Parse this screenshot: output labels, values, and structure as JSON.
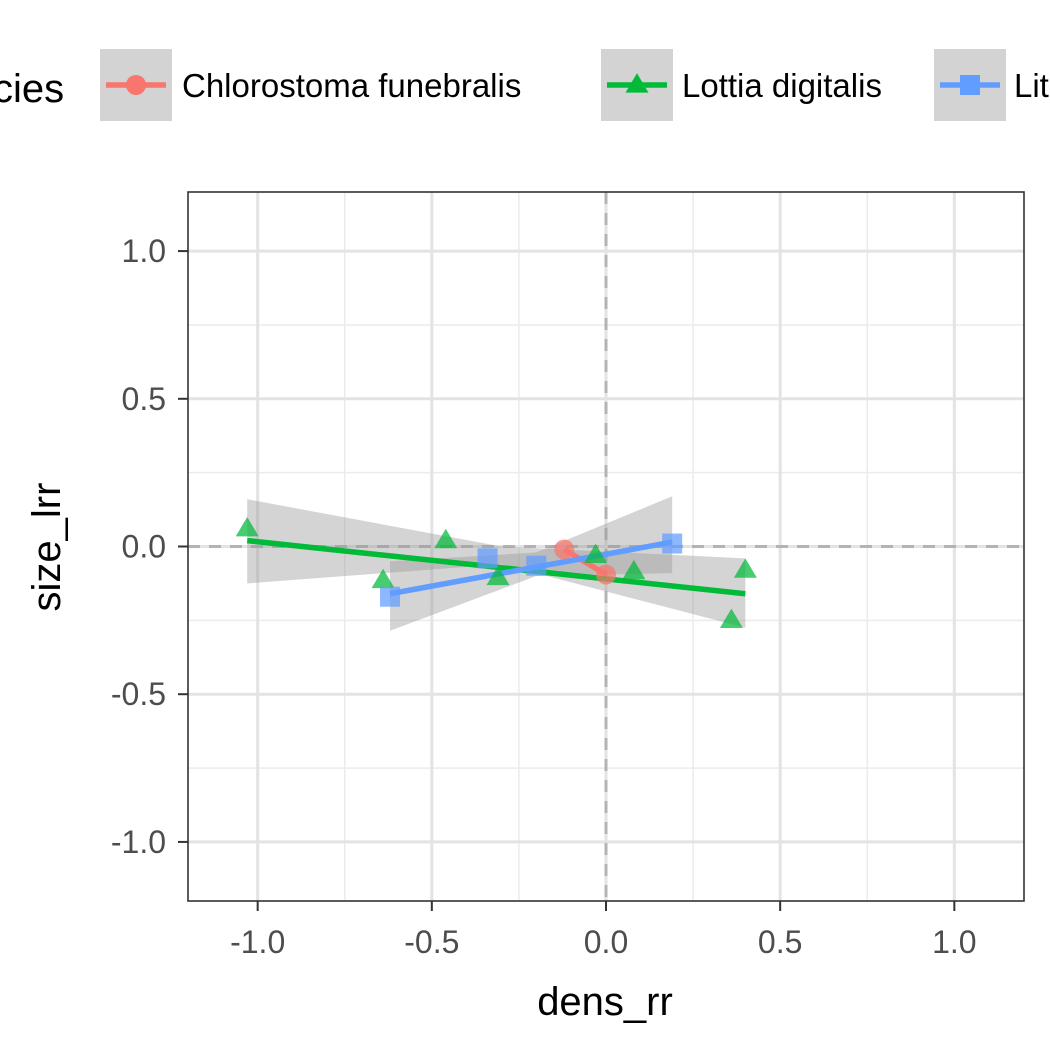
{
  "chart_data": {
    "type": "scatter",
    "xlabel": "dens_rr",
    "ylabel": "size_lrr",
    "xlim": [
      -1.2,
      1.2
    ],
    "ylim": [
      -1.2,
      1.2
    ],
    "x_ticks": [
      -1.0,
      -0.5,
      0.0,
      0.5,
      1.0
    ],
    "y_ticks": [
      -1.0,
      -0.5,
      0.0,
      0.5,
      1.0
    ],
    "x_tick_labels": [
      "-1.0",
      "-0.5",
      "0.0",
      "0.5",
      "1.0"
    ],
    "y_tick_labels": [
      "-1.0",
      "-0.5",
      "0.0",
      "0.5",
      "1.0"
    ],
    "grid": true,
    "reference_lines": {
      "x": 0,
      "y": 0,
      "style": "dashed"
    },
    "legend": {
      "title": "Species",
      "title_visible": "cies",
      "position": "top",
      "entries": [
        "Chlorostoma funebralis",
        "Lottia digitalis",
        "Littorina"
      ],
      "entries_visible": [
        "Chlorostoma funebralis",
        "Lottia digitalis",
        "Lit"
      ]
    },
    "series": [
      {
        "name": "Chlorostoma funebralis",
        "color": "#f8766d",
        "marker": "circle",
        "points": [
          [
            -0.12,
            -0.01
          ],
          [
            0.0,
            -0.095
          ]
        ],
        "fit": {
          "x": [
            -0.12,
            0.0
          ],
          "y": [
            -0.01,
            -0.095
          ]
        },
        "band": null
      },
      {
        "name": "Lottia digitalis",
        "color": "#00ba38",
        "marker": "triangle",
        "points": [
          [
            -1.03,
            0.06
          ],
          [
            -0.46,
            0.02
          ],
          [
            -0.64,
            -0.115
          ],
          [
            -0.31,
            -0.105
          ],
          [
            -0.03,
            -0.03
          ],
          [
            0.08,
            -0.085
          ],
          [
            0.36,
            -0.25
          ],
          [
            0.4,
            -0.08
          ]
        ],
        "fit": {
          "x": [
            -1.03,
            0.4
          ],
          "y": [
            0.02,
            -0.16
          ]
        },
        "band": {
          "x": [
            -1.03,
            -0.3,
            0.4
          ],
          "lower": [
            -0.125,
            -0.06,
            -0.275
          ],
          "upper": [
            0.16,
            0.0,
            -0.04
          ]
        }
      },
      {
        "name": "Littorina",
        "color": "#619cff",
        "marker": "square",
        "points": [
          [
            -0.62,
            -0.17
          ],
          [
            -0.34,
            -0.04
          ],
          [
            -0.2,
            -0.065
          ],
          [
            0.19,
            0.01
          ]
        ],
        "fit": {
          "x": [
            -0.62,
            0.19
          ],
          "y": [
            -0.16,
            0.015
          ]
        },
        "band": {
          "x": [
            -0.62,
            -0.2,
            0.19
          ],
          "lower": [
            -0.285,
            -0.1,
            -0.09
          ],
          "upper": [
            -0.05,
            -0.02,
            0.17
          ]
        }
      }
    ]
  }
}
